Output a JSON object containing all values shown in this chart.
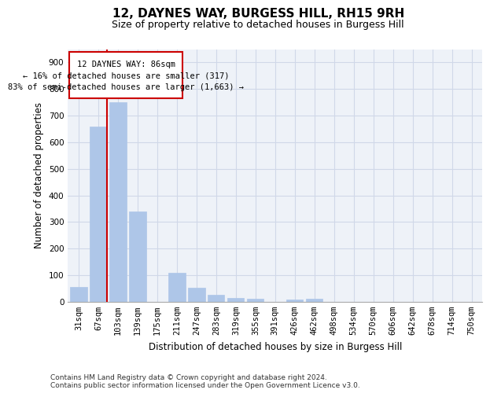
{
  "title": "12, DAYNES WAY, BURGESS HILL, RH15 9RH",
  "subtitle": "Size of property relative to detached houses in Burgess Hill",
  "xlabel": "Distribution of detached houses by size in Burgess Hill",
  "ylabel": "Number of detached properties",
  "categories": [
    "31sqm",
    "67sqm",
    "103sqm",
    "139sqm",
    "175sqm",
    "211sqm",
    "247sqm",
    "283sqm",
    "319sqm",
    "355sqm",
    "391sqm",
    "426sqm",
    "462sqm",
    "498sqm",
    "534sqm",
    "570sqm",
    "606sqm",
    "642sqm",
    "678sqm",
    "714sqm",
    "750sqm"
  ],
  "bar_heights": [
    55,
    660,
    750,
    338,
    0,
    108,
    53,
    25,
    14,
    12,
    0,
    9,
    10,
    0,
    0,
    0,
    0,
    0,
    0,
    0,
    0
  ],
  "bar_color": "#aec6e8",
  "bar_edgecolor": "#aec6e8",
  "vline_color": "#cc0000",
  "annotation_line1": "12 DAYNES WAY: 86sqm",
  "annotation_line2": "← 16% of detached houses are smaller (317)",
  "annotation_line3": "83% of semi-detached houses are larger (1,663) →",
  "annotation_box_color": "#cc0000",
  "ylim": [
    0,
    950
  ],
  "yticks": [
    0,
    100,
    200,
    300,
    400,
    500,
    600,
    700,
    800,
    900
  ],
  "grid_color": "#d0d8e8",
  "bg_color": "#eef2f8",
  "footer": "Contains HM Land Registry data © Crown copyright and database right 2024.\nContains public sector information licensed under the Open Government Licence v3.0.",
  "title_fontsize": 11,
  "subtitle_fontsize": 9,
  "xlabel_fontsize": 8.5,
  "ylabel_fontsize": 8.5,
  "footer_fontsize": 6.5,
  "tick_fontsize": 7.5,
  "ann_fontsize": 7.5
}
